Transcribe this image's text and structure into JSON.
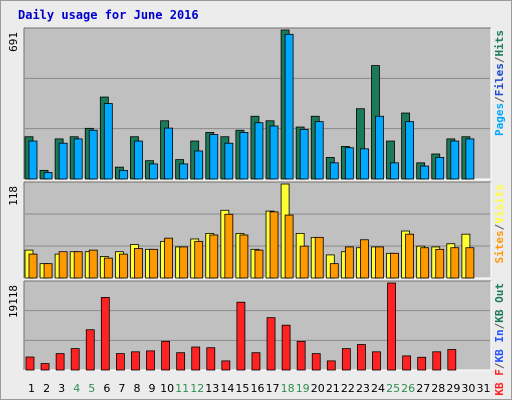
{
  "chart_data": {
    "type": "bar",
    "title": "Daily usage for June 2016",
    "title_color": "#0000cc",
    "categories": [
      "1",
      "2",
      "3",
      "4",
      "5",
      "6",
      "7",
      "8",
      "9",
      "10",
      "11",
      "12",
      "13",
      "14",
      "15",
      "16",
      "17",
      "18",
      "19",
      "20",
      "21",
      "22",
      "23",
      "24",
      "25",
      "26",
      "27",
      "28",
      "29",
      "30",
      "31"
    ],
    "weekend_days": [
      "4",
      "5",
      "11",
      "12",
      "18",
      "19",
      "25",
      "26"
    ],
    "weekend_color": "#2f8f4f",
    "weekday_color": "#000000",
    "colors": {
      "hits": "#1a7a5a",
      "files": "#00a8ff",
      "pages": "#1a4acc",
      "visits": "#ffff33",
      "sites": "#ff9900",
      "kbin": "#ff2222",
      "kbout": "#2255ff"
    },
    "panels": [
      {
        "id": "hits-files-pages",
        "max_label": "691",
        "ymax": 691,
        "series": [
          {
            "name": "Hits",
            "key": "hits",
            "values": [
              196,
              40,
              186,
              196,
              235,
              380,
              55,
              196,
              85,
              270,
              90,
              176,
              216,
              196,
              226,
              291,
              270,
              691,
              241,
              291,
              100,
              151,
              326,
              526,
              176,
              306,
              75,
              116,
              186,
              196,
              0
            ]
          },
          {
            "name": "Files",
            "key": "files",
            "values": [
              176,
              30,
              166,
              186,
              226,
              350,
              40,
              176,
              70,
              236,
              70,
              130,
              206,
              166,
              216,
              261,
              246,
              671,
              230,
              266,
              75,
              145,
              140,
              291,
              75,
              266,
              60,
              100,
              176,
              186,
              0
            ]
          },
          {
            "name": "Pages",
            "key": "pages",
            "values": [
              0,
              0,
              0,
              0,
              0,
              0,
              0,
              0,
              0,
              0,
              0,
              0,
              0,
              0,
              0,
              0,
              0,
              0,
              0,
              0,
              0,
              0,
              0,
              0,
              0,
              0,
              0,
              0,
              0,
              0,
              0
            ]
          }
        ],
        "labels": [
          {
            "text": "Pages",
            "key": "files"
          },
          {
            "text": "/",
            "key": "sep"
          },
          {
            "text": "Files",
            "key": "pages"
          },
          {
            "text": "/",
            "key": "sep"
          },
          {
            "text": "Hits",
            "key": "hits"
          }
        ]
      },
      {
        "id": "visits-sites",
        "max_label": "118",
        "ymax": 118,
        "series": [
          {
            "name": "Visits",
            "key": "visits",
            "values": [
              35,
              18,
              30,
              33,
              33,
              27,
              33,
              42,
              36,
              46,
              39,
              49,
              56,
              85,
              56,
              36,
              84,
              118,
              56,
              51,
              29,
              33,
              38,
              39,
              31,
              59,
              40,
              39,
              43,
              55,
              0
            ]
          },
          {
            "name": "Sites",
            "key": "sites",
            "values": [
              30,
              18,
              33,
              33,
              35,
              25,
              30,
              37,
              36,
              50,
              39,
              46,
              54,
              80,
              54,
              35,
              83,
              79,
              40,
              51,
              18,
              39,
              48,
              39,
              31,
              55,
              38,
              36,
              38,
              38,
              0
            ]
          }
        ],
        "labels": [
          {
            "text": "Sites",
            "key": "sites"
          },
          {
            "text": "/",
            "key": "sep"
          },
          {
            "text": "Visits",
            "key": "visits"
          }
        ]
      },
      {
        "id": "kbytes",
        "max_label": "19118",
        "ymax": 19118,
        "series": [
          {
            "name": "KBytes",
            "key": "kbin",
            "values": [
              2850,
              1420,
              3600,
              4700,
              8850,
              15950,
              3600,
              4000,
              4200,
              6300,
              3800,
              5050,
              4900,
              2000,
              14900,
              3800,
              11500,
              9850,
              6300,
              3600,
              2000,
              4700,
              5600,
              4000,
              19118,
              3100,
              2800,
              4000,
              4500,
              0,
              0
            ]
          }
        ],
        "labels": [
          {
            "text": "KB F",
            "key": "kbin"
          },
          {
            "text": "/",
            "key": "sep"
          },
          {
            "text": "KB In",
            "key": "kbout"
          },
          {
            "text": "/",
            "key": "sep"
          },
          {
            "text": "KB Out",
            "key": "hits"
          }
        ]
      }
    ]
  }
}
